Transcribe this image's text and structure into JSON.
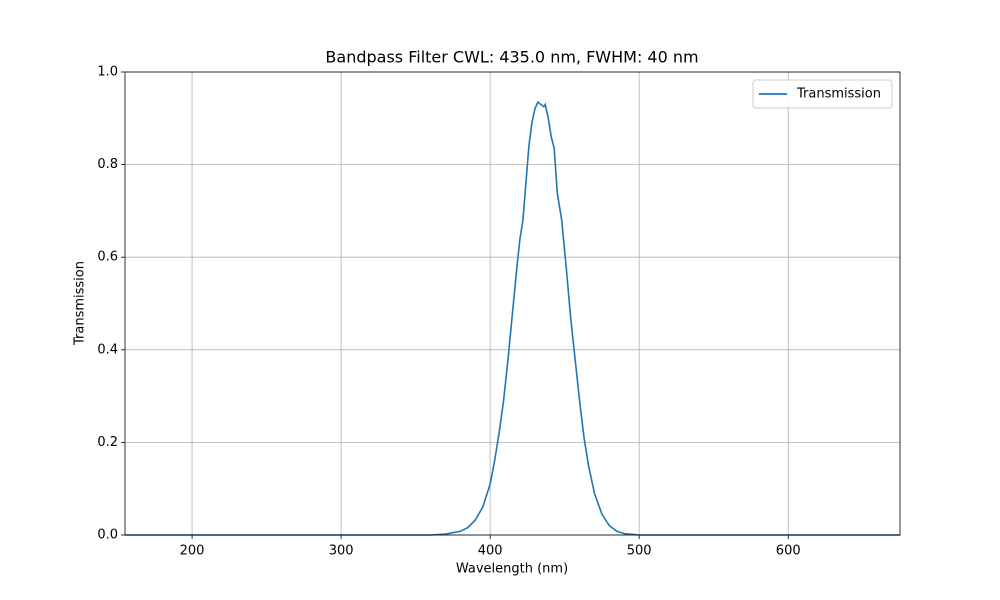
{
  "chart_data": {
    "type": "line",
    "title": "Bandpass Filter CWL: 435.0 nm, FWHM: 40 nm",
    "xlabel": "Wavelength (nm)",
    "ylabel": "Transmission",
    "x": [
      155,
      360,
      370,
      380,
      385,
      390,
      395,
      400,
      403,
      406,
      409,
      412,
      415,
      418,
      420,
      422,
      424,
      426,
      428,
      430,
      432,
      434,
      436,
      437,
      439,
      441,
      443,
      445,
      448,
      451,
      454,
      457,
      460,
      463,
      466,
      470,
      475,
      480,
      485,
      490,
      500,
      675
    ],
    "series": [
      {
        "name": "Transmission",
        "color": "#1f77b4",
        "values": [
          0,
          0,
          0.002,
          0.008,
          0.016,
          0.032,
          0.06,
          0.11,
          0.16,
          0.22,
          0.29,
          0.38,
          0.48,
          0.58,
          0.64,
          0.68,
          0.76,
          0.84,
          0.89,
          0.92,
          0.935,
          0.93,
          0.925,
          0.93,
          0.9,
          0.86,
          0.835,
          0.74,
          0.68,
          0.58,
          0.47,
          0.38,
          0.29,
          0.21,
          0.15,
          0.09,
          0.045,
          0.02,
          0.008,
          0.003,
          0,
          0
        ]
      }
    ],
    "xlim": [
      155,
      675
    ],
    "ylim": [
      0,
      1
    ],
    "xticks": [
      200,
      300,
      400,
      500,
      600
    ],
    "yticks": [
      {
        "value": 0,
        "label": "0.0"
      },
      0.2,
      0.4,
      0.6,
      0.8,
      {
        "value": 1,
        "label": "1.0"
      }
    ],
    "grid": true,
    "legend": "upper-right"
  }
}
